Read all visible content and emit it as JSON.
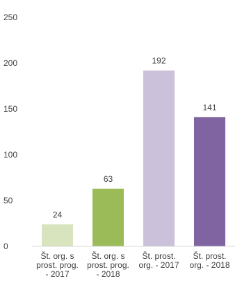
{
  "chart_data": {
    "type": "bar",
    "categories": [
      "Št. org. s prost. prog. - 2017",
      "Št. org. s prost. prog. - 2018",
      "Št. prost. org. - 2017",
      "Št. prost. org. - 2018"
    ],
    "category_lines": [
      [
        "Št. org. s",
        "prost. prog.",
        "- 2017"
      ],
      [
        "Št. org. s",
        "prost. prog.",
        "- 2018"
      ],
      [
        "Št. prost.",
        "org. - 2017"
      ],
      [
        "Št. prost.",
        "org. - 2018"
      ]
    ],
    "values": [
      24,
      63,
      192,
      141
    ],
    "colors": [
      "#d7e4bd",
      "#9bbb59",
      "#ccc1da",
      "#8064a2"
    ],
    "yticks": [
      0,
      50,
      100,
      150,
      200,
      250
    ],
    "ylim": [
      0,
      250
    ],
    "grid": false,
    "legend": "none",
    "data_labels": true
  },
  "colors": {
    "axis": "#d9d9d9",
    "text": "#404040"
  }
}
